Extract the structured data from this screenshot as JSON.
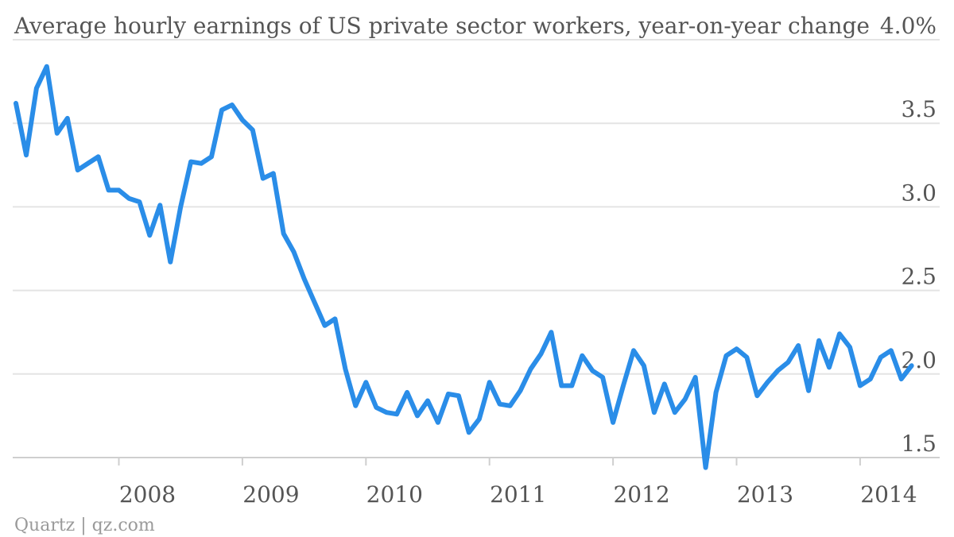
{
  "chart_data": {
    "type": "line",
    "title": "Average hourly earnings of US private sector workers, year-on-year change",
    "xlabel": "",
    "ylabel": "",
    "y_unit_suffix": "%",
    "ylim": [
      1.5,
      4.0
    ],
    "yticks": [
      "4.0%",
      "3.5",
      "3.0",
      "2.5",
      "2.0",
      "1.5"
    ],
    "ytick_values": [
      4.0,
      3.5,
      3.0,
      2.5,
      2.0,
      1.5
    ],
    "xticks": [
      "2008",
      "2009",
      "2010",
      "2011",
      "2012",
      "2013",
      "2014"
    ],
    "xtick_values": [
      2008,
      2009,
      2010,
      2011,
      2012,
      2013,
      2014
    ],
    "grid": "horizontal",
    "color": "#2a8de8",
    "x_start": "2007-03",
    "x_step": "month",
    "values": [
      3.62,
      3.31,
      3.71,
      3.84,
      3.44,
      3.53,
      3.22,
      3.26,
      3.3,
      3.1,
      3.1,
      3.05,
      3.03,
      2.83,
      3.01,
      2.67,
      3.0,
      3.27,
      3.26,
      3.3,
      3.58,
      3.61,
      3.52,
      3.46,
      3.17,
      3.2,
      2.84,
      2.73,
      2.57,
      2.43,
      2.29,
      2.33,
      2.03,
      1.81,
      1.95,
      1.8,
      1.77,
      1.76,
      1.89,
      1.75,
      1.84,
      1.71,
      1.88,
      1.87,
      1.65,
      1.73,
      1.95,
      1.82,
      1.81,
      1.9,
      2.03,
      2.12,
      2.25,
      1.93,
      1.93,
      2.11,
      2.02,
      1.98,
      1.71,
      1.93,
      2.14,
      2.05,
      1.77,
      1.94,
      1.77,
      1.85,
      1.98,
      1.44,
      1.89,
      2.11,
      2.15,
      2.1,
      1.87,
      1.95,
      2.02,
      2.07,
      2.17,
      1.9,
      2.2,
      2.04,
      2.24,
      2.16,
      1.93,
      1.97,
      2.1,
      2.14,
      1.97,
      2.05
    ],
    "source": "Quartz | qz.com"
  }
}
